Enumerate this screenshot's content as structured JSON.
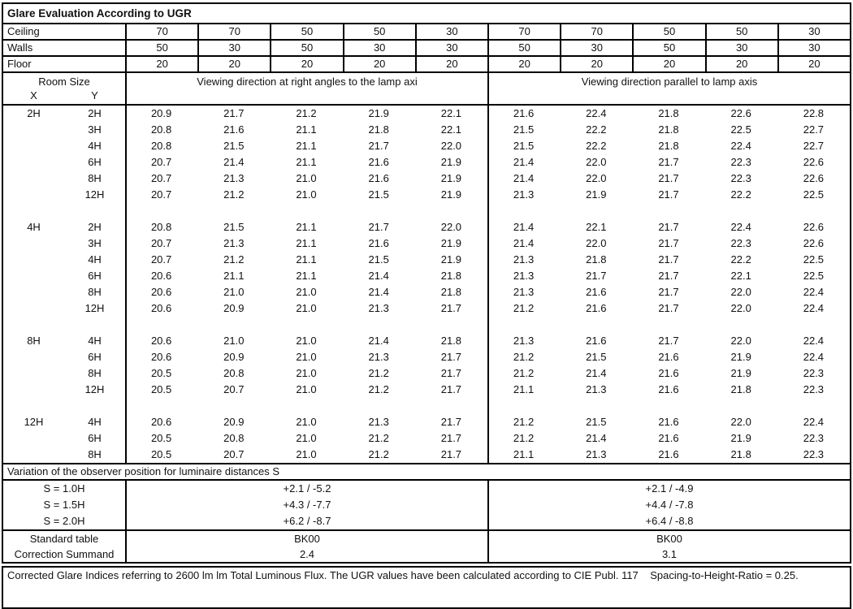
{
  "title": "Glare Evaluation According to UGR",
  "surfaces": [
    {
      "label": "Ceiling",
      "v": [
        "70",
        "70",
        "50",
        "50",
        "30",
        "70",
        "70",
        "50",
        "50",
        "30"
      ]
    },
    {
      "label": "Walls",
      "v": [
        "50",
        "30",
        "50",
        "30",
        "30",
        "50",
        "30",
        "50",
        "30",
        "30"
      ]
    },
    {
      "label": "Floor",
      "v": [
        "20",
        "20",
        "20",
        "20",
        "20",
        "20",
        "20",
        "20",
        "20",
        "20"
      ]
    }
  ],
  "header": {
    "room_size": "Room Size",
    "x": "X",
    "y": "Y",
    "left_group": "Viewing direction at right angles to the lamp axi",
    "right_group": "Viewing direction parallel to lamp axis"
  },
  "ugr_rows": [
    {
      "x": "2H",
      "y": "2H",
      "v": [
        "20.9",
        "21.7",
        "21.2",
        "21.9",
        "22.1",
        "21.6",
        "22.4",
        "21.8",
        "22.6",
        "22.8"
      ]
    },
    {
      "y": "3H",
      "v": [
        "20.8",
        "21.6",
        "21.1",
        "21.8",
        "22.1",
        "21.5",
        "22.2",
        "21.8",
        "22.5",
        "22.7"
      ]
    },
    {
      "y": "4H",
      "v": [
        "20.8",
        "21.5",
        "21.1",
        "21.7",
        "22.0",
        "21.5",
        "22.2",
        "21.8",
        "22.4",
        "22.7"
      ]
    },
    {
      "y": "6H",
      "v": [
        "20.7",
        "21.4",
        "21.1",
        "21.6",
        "21.9",
        "21.4",
        "22.0",
        "21.7",
        "22.3",
        "22.6"
      ]
    },
    {
      "y": "8H",
      "v": [
        "20.7",
        "21.3",
        "21.0",
        "21.6",
        "21.9",
        "21.4",
        "22.0",
        "21.7",
        "22.3",
        "22.6"
      ]
    },
    {
      "y": "12H",
      "v": [
        "20.7",
        "21.2",
        "21.0",
        "21.5",
        "21.9",
        "21.3",
        "21.9",
        "21.7",
        "22.2",
        "22.5"
      ]
    },
    {
      "spacer": true
    },
    {
      "x": "4H",
      "y": "2H",
      "v": [
        "20.8",
        "21.5",
        "21.1",
        "21.7",
        "22.0",
        "21.4",
        "22.1",
        "21.7",
        "22.4",
        "22.6"
      ]
    },
    {
      "y": "3H",
      "v": [
        "20.7",
        "21.3",
        "21.1",
        "21.6",
        "21.9",
        "21.4",
        "22.0",
        "21.7",
        "22.3",
        "22.6"
      ]
    },
    {
      "y": "4H",
      "v": [
        "20.7",
        "21.2",
        "21.1",
        "21.5",
        "21.9",
        "21.3",
        "21.8",
        "21.7",
        "22.2",
        "22.5"
      ]
    },
    {
      "y": "6H",
      "v": [
        "20.6",
        "21.1",
        "21.1",
        "21.4",
        "21.8",
        "21.3",
        "21.7",
        "21.7",
        "22.1",
        "22.5"
      ]
    },
    {
      "y": "8H",
      "v": [
        "20.6",
        "21.0",
        "21.0",
        "21.4",
        "21.8",
        "21.3",
        "21.6",
        "21.7",
        "22.0",
        "22.4"
      ]
    },
    {
      "y": "12H",
      "v": [
        "20.6",
        "20.9",
        "21.0",
        "21.3",
        "21.7",
        "21.2",
        "21.6",
        "21.7",
        "22.0",
        "22.4"
      ]
    },
    {
      "spacer": true
    },
    {
      "x": "8H",
      "y": "4H",
      "v": [
        "20.6",
        "21.0",
        "21.0",
        "21.4",
        "21.8",
        "21.3",
        "21.6",
        "21.7",
        "22.0",
        "22.4"
      ]
    },
    {
      "y": "6H",
      "v": [
        "20.6",
        "20.9",
        "21.0",
        "21.3",
        "21.7",
        "21.2",
        "21.5",
        "21.6",
        "21.9",
        "22.4"
      ]
    },
    {
      "y": "8H",
      "v": [
        "20.5",
        "20.8",
        "21.0",
        "21.2",
        "21.7",
        "21.2",
        "21.4",
        "21.6",
        "21.9",
        "22.3"
      ]
    },
    {
      "y": "12H",
      "v": [
        "20.5",
        "20.7",
        "21.0",
        "21.2",
        "21.7",
        "21.1",
        "21.3",
        "21.6",
        "21.8",
        "22.3"
      ]
    },
    {
      "spacer": true
    },
    {
      "x": "12H",
      "y": "4H",
      "v": [
        "20.6",
        "20.9",
        "21.0",
        "21.3",
        "21.7",
        "21.2",
        "21.5",
        "21.6",
        "22.0",
        "22.4"
      ]
    },
    {
      "y": "6H",
      "v": [
        "20.5",
        "20.8",
        "21.0",
        "21.2",
        "21.7",
        "21.2",
        "21.4",
        "21.6",
        "21.9",
        "22.3"
      ]
    },
    {
      "y": "8H",
      "v": [
        "20.5",
        "20.7",
        "21.0",
        "21.2",
        "21.7",
        "21.1",
        "21.3",
        "21.6",
        "21.8",
        "22.3"
      ]
    }
  ],
  "variation": {
    "title": "Variation of the observer position for luminaire distances S",
    "rows": [
      {
        "label": "S = 1.0H",
        "left": "+2.1 / -5.2",
        "right": "+2.1 / -4.9"
      },
      {
        "label": "S = 1.5H",
        "left": "+4.3 / -7.7",
        "right": "+4.4 / -7.8"
      },
      {
        "label": "S = 2.0H",
        "left": "+6.2 / -8.7",
        "right": "+6.4 / -8.8"
      }
    ]
  },
  "standard": {
    "rows": [
      {
        "label": "Standard table",
        "left": "BK00",
        "right": "BK00"
      },
      {
        "label": "Correction Summand",
        "left": "2.4",
        "right": "3.1"
      }
    ]
  },
  "footer": "Corrected Glare Indices referring to 2600 lm lm Total Luminous Flux. The UGR values have been calculated according to CIE Publ. 117    Spacing-to-Height-Ratio = 0.25.",
  "colors": {
    "border": "#000000",
    "text": "#111111",
    "background": "#ffffff"
  }
}
